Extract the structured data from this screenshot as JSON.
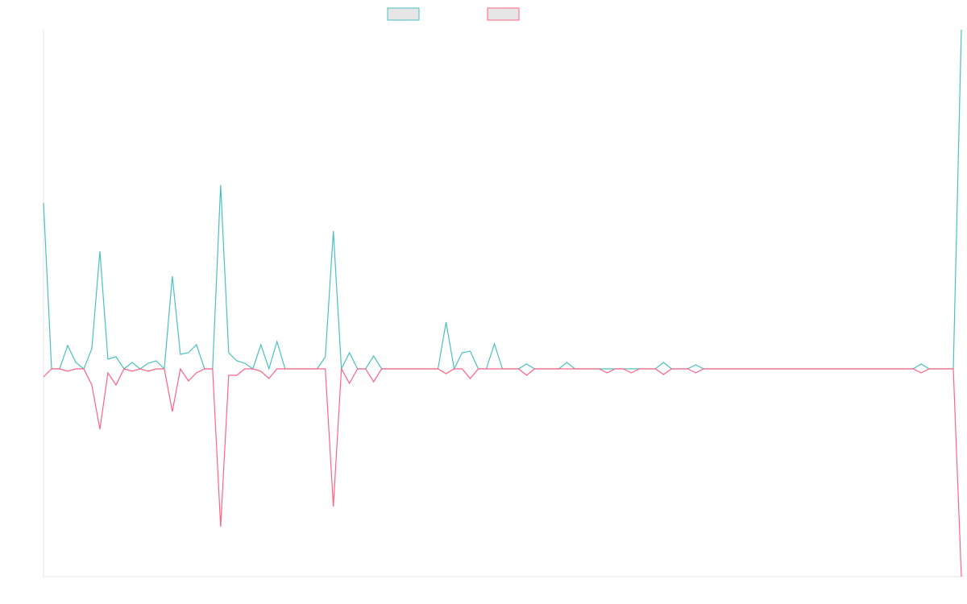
{
  "chart_data": {
    "type": "line",
    "series": [
      {
        "color": "#4bc0c0",
        "values": [
          206,
          0,
          0,
          29,
          8,
          0,
          25,
          146,
          12,
          15,
          0,
          8,
          0,
          7,
          10,
          0,
          115,
          18,
          20,
          30,
          0,
          0,
          228,
          20,
          10,
          7,
          0,
          30,
          0,
          34,
          0,
          0,
          0,
          0,
          0,
          15,
          171,
          0,
          20,
          0,
          0,
          16,
          0,
          0,
          0,
          0,
          0,
          0,
          0,
          0,
          58,
          0,
          20,
          22,
          0,
          0,
          31,
          0,
          0,
          0,
          6,
          0,
          0,
          0,
          0,
          8,
          0,
          0,
          0,
          0,
          0,
          0,
          0,
          0,
          0,
          0,
          0,
          8,
          0,
          0,
          0,
          5,
          0,
          0,
          0,
          0,
          0,
          0,
          0,
          0,
          0,
          0,
          0,
          0,
          0,
          0,
          0,
          0,
          0,
          0,
          0,
          0,
          0,
          0,
          0,
          0,
          0,
          0,
          0,
          6,
          0,
          0,
          0,
          0,
          421
        ]
      },
      {
        "color": "#ff6384",
        "values": [
          -10,
          0,
          0,
          -3,
          0,
          0,
          -20,
          -75,
          -5,
          -20,
          0,
          -3,
          0,
          -3,
          0,
          0,
          -53,
          0,
          -15,
          -5,
          0,
          0,
          -196,
          -8,
          -8,
          0,
          0,
          -3,
          -12,
          0,
          0,
          0,
          0,
          0,
          0,
          0,
          -171,
          0,
          -18,
          0,
          0,
          -16,
          0,
          0,
          0,
          0,
          0,
          0,
          0,
          0,
          -6,
          0,
          0,
          -12,
          0,
          0,
          0,
          0,
          0,
          0,
          -8,
          0,
          0,
          0,
          0,
          0,
          0,
          0,
          0,
          0,
          -5,
          0,
          0,
          -5,
          0,
          0,
          0,
          -7,
          0,
          0,
          0,
          -5,
          0,
          0,
          0,
          0,
          0,
          0,
          0,
          0,
          0,
          0,
          0,
          0,
          0,
          0,
          0,
          0,
          0,
          0,
          0,
          0,
          0,
          0,
          0,
          0,
          0,
          0,
          0,
          -5,
          0,
          0,
          0,
          0,
          -258
        ]
      }
    ],
    "ylim": [
      -258,
      421
    ]
  }
}
